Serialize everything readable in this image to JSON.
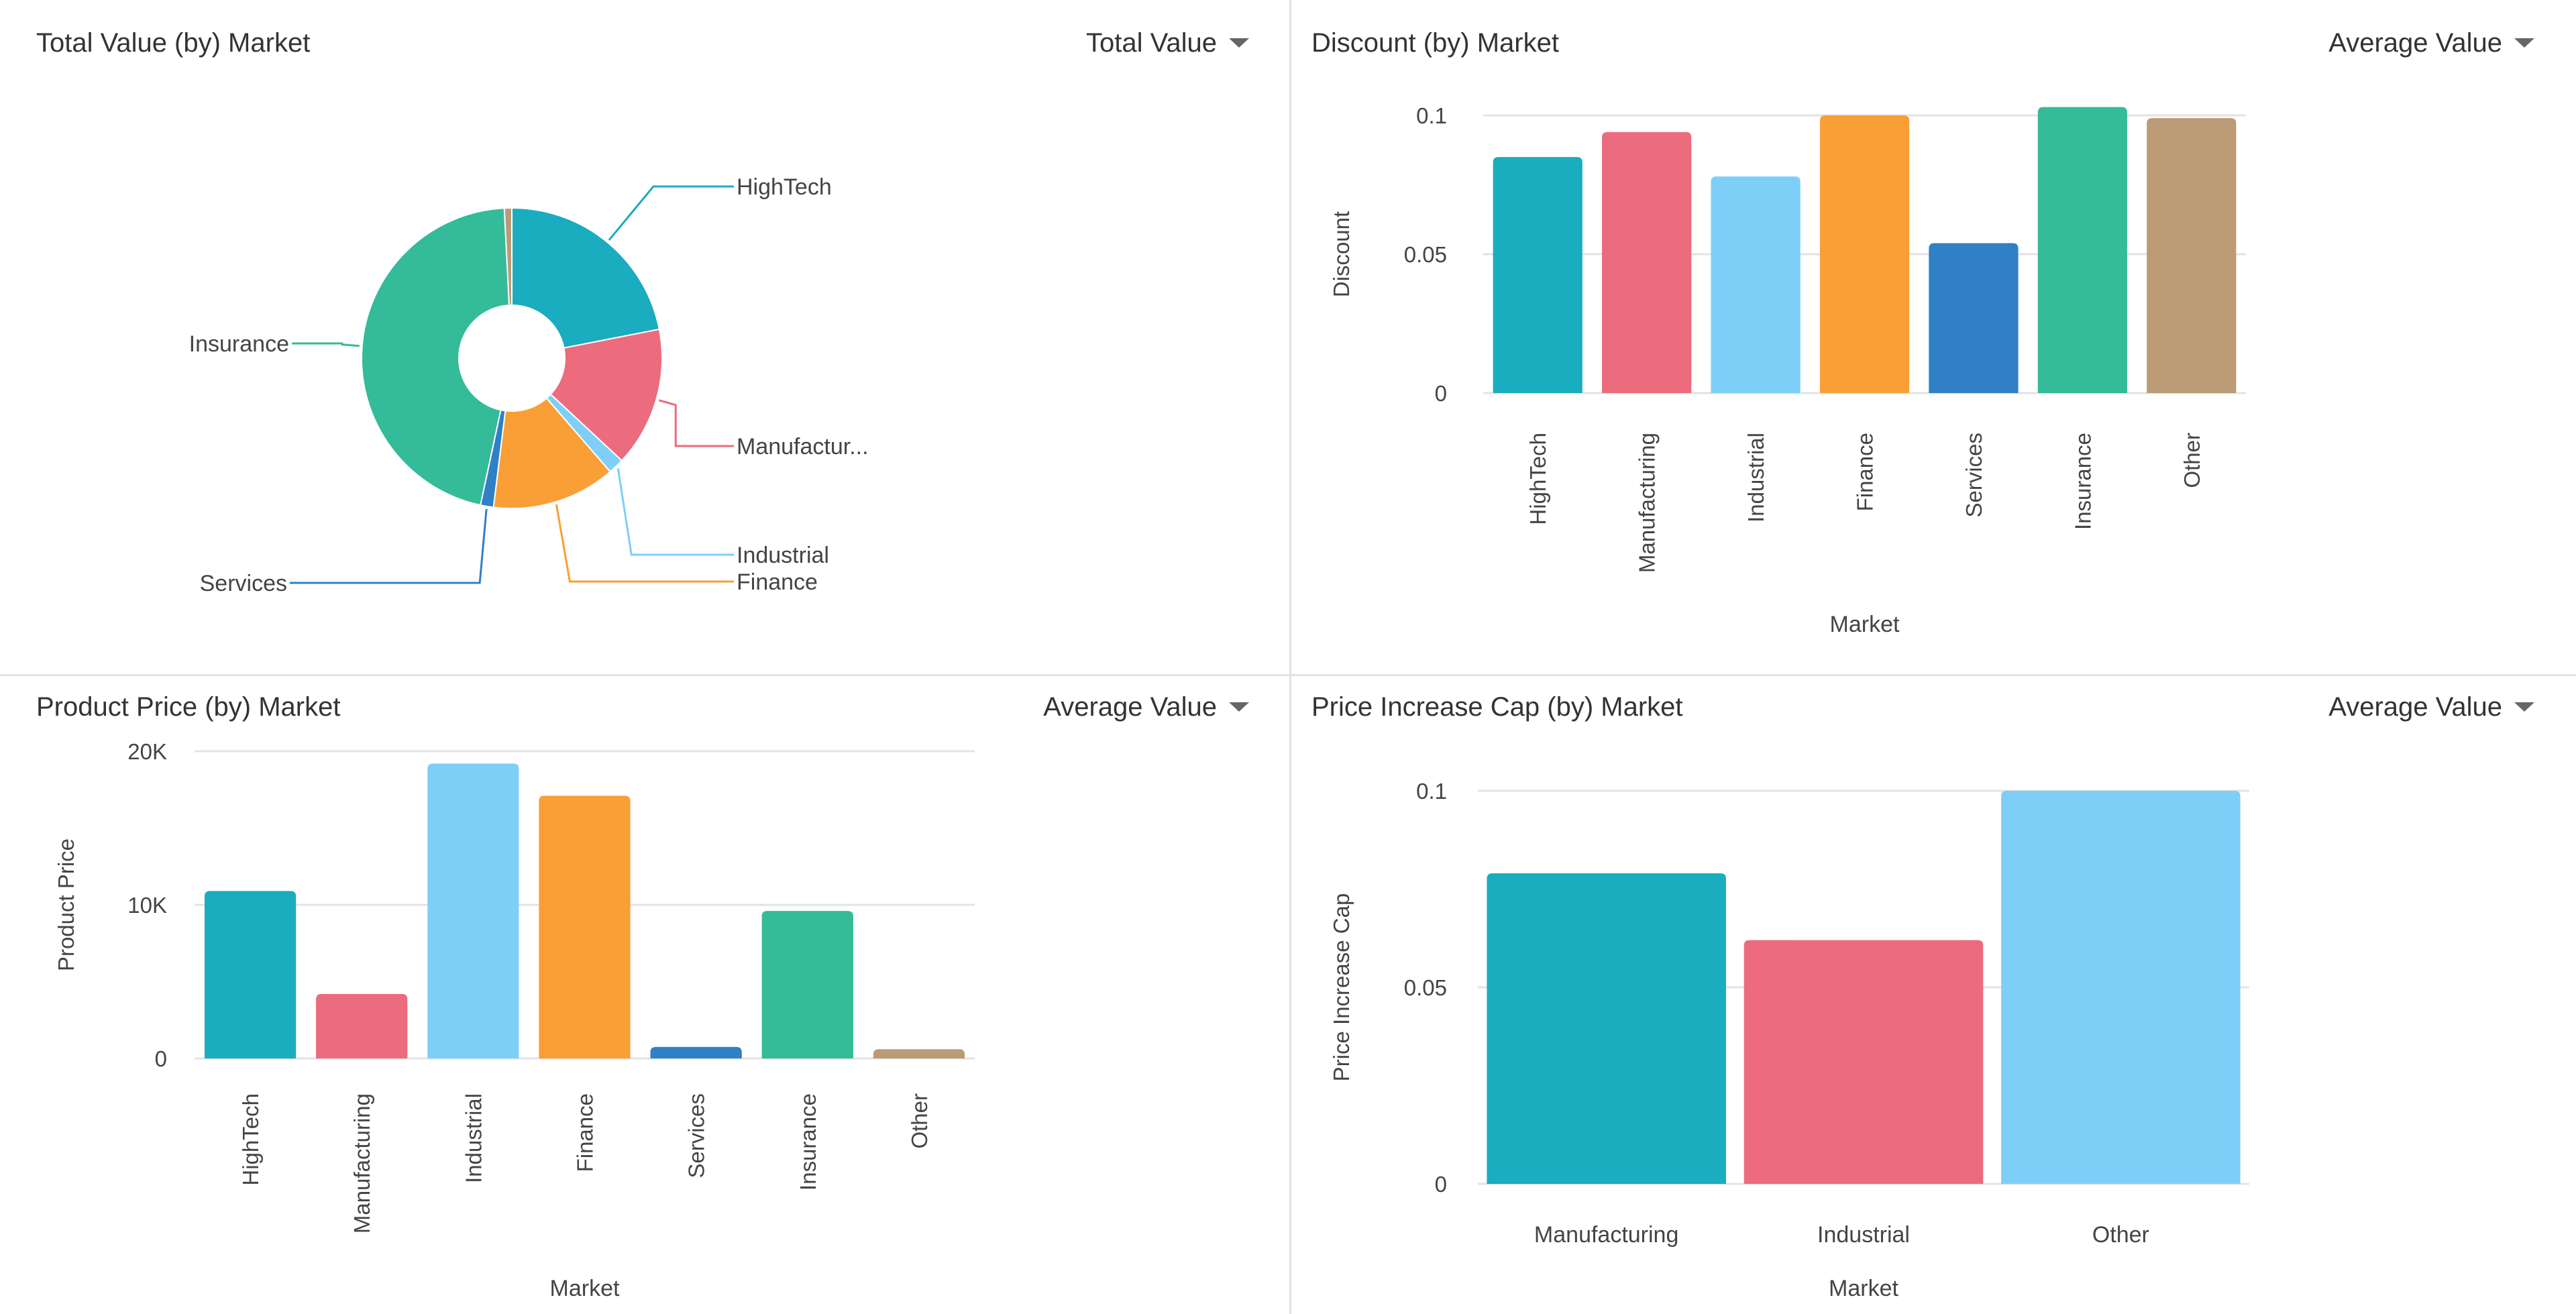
{
  "panels": [
    {
      "title": "Total Value (by) Market",
      "aggregation": "Total Value"
    },
    {
      "title": "Discount (by) Market",
      "aggregation": "Average Value"
    },
    {
      "title": "Product Price (by) Market",
      "aggregation": "Average Value"
    },
    {
      "title": "Price Increase Cap (by) Market",
      "aggregation": "Average Value"
    }
  ],
  "chart_data": [
    {
      "type": "pie",
      "donut": true,
      "title": "Total Value (by) Market",
      "categories": [
        "HighTech",
        "Manufacturing",
        "Industrial",
        "Finance",
        "Services",
        "Insurance",
        "Other"
      ],
      "labels": [
        "HighTech",
        "Manufactur...",
        "Industrial",
        "Finance",
        "Services",
        "Insurance",
        ""
      ],
      "values_percent": [
        21.9,
        15.0,
        1.7,
        13.3,
        1.4,
        45.8,
        0.8
      ],
      "colors": [
        "#1aacbf",
        "#ec6b7d",
        "#7dcff8",
        "#f99f35",
        "#2f80c6",
        "#34bb99",
        "#bb9a76"
      ]
    },
    {
      "type": "bar",
      "title": "Discount (by) Market",
      "xlabel": "Market",
      "ylabel": "Discount",
      "categories": [
        "HighTech",
        "Manufacturing",
        "Industrial",
        "Finance",
        "Services",
        "Insurance",
        "Other"
      ],
      "values": [
        0.085,
        0.094,
        0.078,
        0.1,
        0.054,
        0.103,
        0.099
      ],
      "colors": [
        "#1aacbf",
        "#ec6b7d",
        "#7dcff8",
        "#f99f35",
        "#2f80c6",
        "#34bb99",
        "#bb9a76"
      ],
      "yticks": [
        0,
        0.05,
        0.1
      ],
      "ytick_labels": [
        "0",
        "0.05",
        "0.1"
      ],
      "ylim": [
        0,
        0.1
      ],
      "grid": true
    },
    {
      "type": "bar",
      "title": "Product Price (by) Market",
      "xlabel": "Market",
      "ylabel": "Product Price",
      "categories": [
        "HighTech",
        "Manufacturing",
        "Industrial",
        "Finance",
        "Services",
        "Insurance",
        "Other"
      ],
      "values": [
        10900,
        4200,
        19200,
        17100,
        750,
        9600,
        600
      ],
      "colors": [
        "#1aacbf",
        "#ec6b7d",
        "#7dcff8",
        "#f99f35",
        "#2f80c6",
        "#34bb99",
        "#bb9a76"
      ],
      "yticks": [
        0,
        10000,
        20000
      ],
      "ytick_labels": [
        "0",
        "10K",
        "20K"
      ],
      "ylim": [
        0,
        20000
      ],
      "grid": true
    },
    {
      "type": "bar",
      "title": "Price Increase Cap (by) Market",
      "xlabel": "Market",
      "ylabel": "Price Increase Cap",
      "categories": [
        "Manufacturing",
        "Industrial",
        "Other"
      ],
      "values": [
        0.079,
        0.062,
        0.1
      ],
      "colors": [
        "#1aacbf",
        "#ec6b7d",
        "#7dcff8"
      ],
      "yticks": [
        0,
        0.05,
        0.1
      ],
      "ytick_labels": [
        "0",
        "0.05",
        "0.1"
      ],
      "ylim": [
        0,
        0.1
      ],
      "grid": true
    }
  ]
}
